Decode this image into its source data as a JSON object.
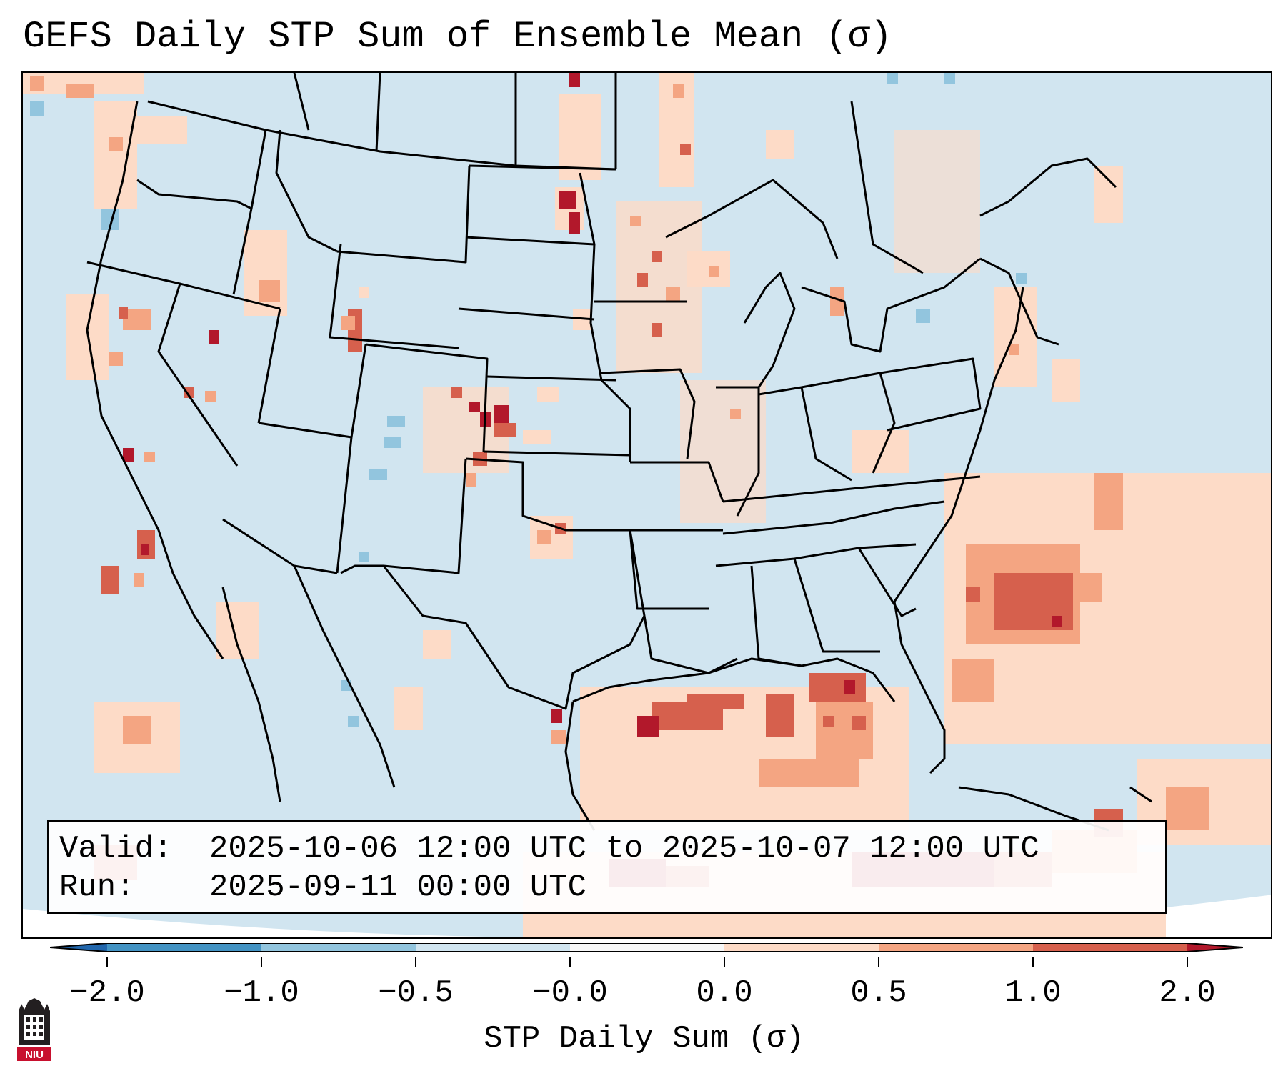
{
  "title": "GEFS Daily STP Sum of Ensemble Mean (σ)",
  "info": {
    "valid_label": "Valid:",
    "valid_value": "2025-10-06 12:00 UTC to 2025-10-07 12:00 UTC",
    "run_label": "Run:",
    "run_value": "2025-09-11 00:00 UTC"
  },
  "colorbar": {
    "label": "STP Daily Sum (σ)",
    "ticks": [
      "−2.0",
      "−1.0",
      "−0.5",
      "−0.0",
      "0.0",
      "0.5",
      "1.0",
      "2.0"
    ],
    "colors": {
      "below": "#2166ac",
      "n2_n1": "#4393c3",
      "n1_n05": "#92c5de",
      "n05_0": "#d1e5f0",
      "zero": "#f7f7f7",
      "p0_05": "#fddbc7",
      "p05_1": "#f4a582",
      "p1_2": "#d6604d",
      "above": "#b2182b"
    }
  },
  "map": {
    "region": "Continental United States, northern Mexico, Gulf of Mexico and western Atlantic",
    "background_color": "#d1e5f0"
  },
  "logo": {
    "text": "NIU"
  }
}
